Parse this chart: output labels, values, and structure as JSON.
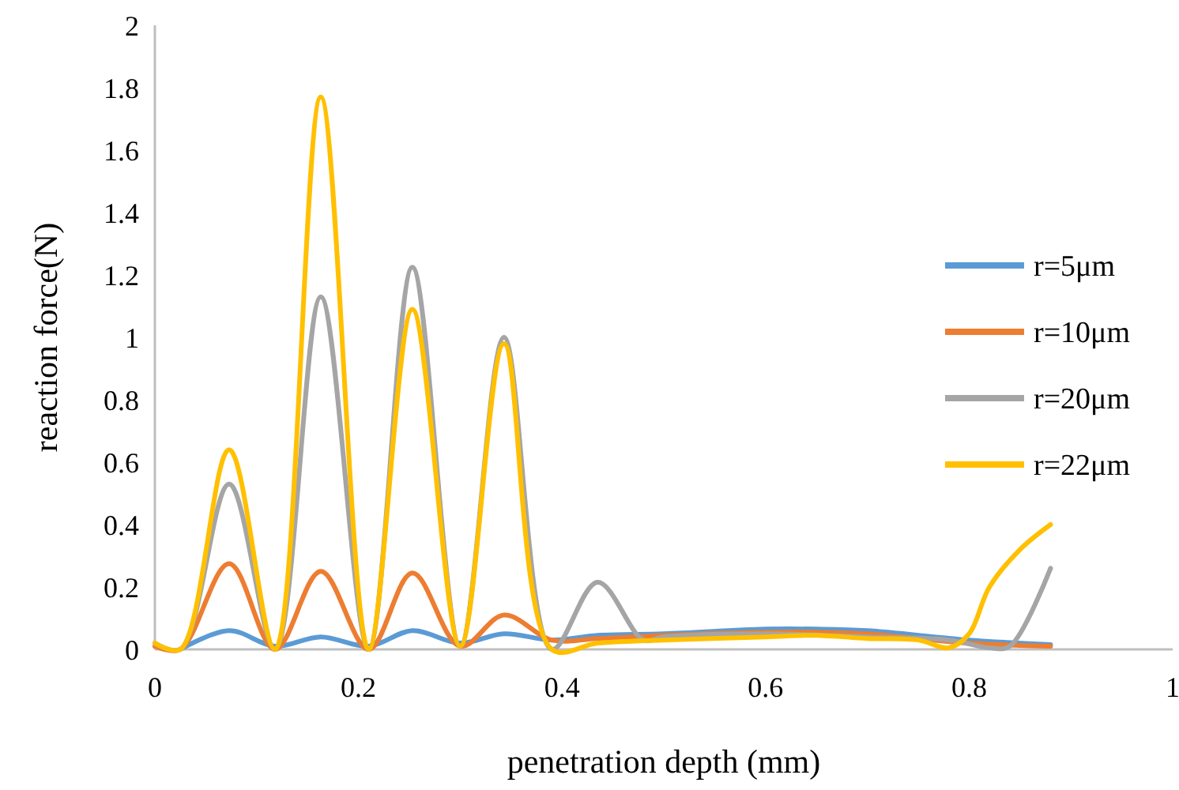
{
  "chart_data": {
    "type": "line",
    "xlabel": "penetration depth (mm)",
    "ylabel": "reaction force(N)",
    "xlim": [
      0,
      1
    ],
    "xticks": [
      0,
      0.2,
      0.4,
      0.6,
      0.8,
      1
    ],
    "ylim": [
      0,
      2
    ],
    "yticks": [
      0,
      0.2,
      0.4,
      0.6,
      0.8,
      1,
      1.2,
      1.4,
      1.6,
      1.8,
      2
    ],
    "grid": false,
    "legend": "right",
    "marker": "none",
    "line_style": "solid",
    "series": [
      {
        "name": "r=5μm",
        "color": "#5b9bd5",
        "x": [
          0.025,
          0.073,
          0.118,
          0.163,
          0.21,
          0.253,
          0.3,
          0.343,
          0.39,
          0.435,
          0.5,
          0.6,
          0.65,
          0.7,
          0.8,
          0.88
        ],
        "values": [
          0,
          0.06,
          0.01,
          0.04,
          0.01,
          0.06,
          0.02,
          0.05,
          0.03,
          0.045,
          0.05,
          0.065,
          0.065,
          0.06,
          0.03,
          0.015
        ]
      },
      {
        "name": "r=10μm",
        "color": "#ed7d31",
        "x": [
          0,
          0.025,
          0.073,
          0.118,
          0.163,
          0.21,
          0.253,
          0.3,
          0.343,
          0.39,
          0.435,
          0.5,
          0.6,
          0.65,
          0.7,
          0.8,
          0.88
        ],
        "values": [
          0.01,
          0,
          0.275,
          0,
          0.25,
          0,
          0.245,
          0.01,
          0.11,
          0.03,
          0.035,
          0.045,
          0.055,
          0.055,
          0.05,
          0.02,
          0.01
        ]
      },
      {
        "name": "r=20μm",
        "color": "#a5a5a5",
        "x": [
          0,
          0.025,
          0.073,
          0.118,
          0.163,
          0.21,
          0.253,
          0.3,
          0.343,
          0.39,
          0.435,
          0.48,
          0.5,
          0.6,
          0.7,
          0.78,
          0.82,
          0.84,
          0.88
        ],
        "values": [
          0.02,
          0,
          0.53,
          0,
          1.13,
          0,
          1.225,
          0.01,
          1,
          0,
          0.215,
          0.03,
          0.04,
          0.05,
          0.04,
          0.03,
          0.005,
          0.01,
          0.26
        ]
      },
      {
        "name": "r=22μm",
        "color": "#ffc000",
        "x": [
          0,
          0.025,
          0.073,
          0.118,
          0.163,
          0.21,
          0.253,
          0.3,
          0.343,
          0.39,
          0.435,
          0.5,
          0.6,
          0.65,
          0.7,
          0.75,
          0.78,
          0.8,
          0.82,
          0.85,
          0.88
        ],
        "values": [
          0.02,
          0,
          0.64,
          0,
          1.77,
          0,
          1.09,
          0.01,
          0.98,
          0,
          0.02,
          0.03,
          0.04,
          0.045,
          0.035,
          0.03,
          0.005,
          0.05,
          0.2,
          0.32,
          0.4
        ]
      }
    ]
  }
}
